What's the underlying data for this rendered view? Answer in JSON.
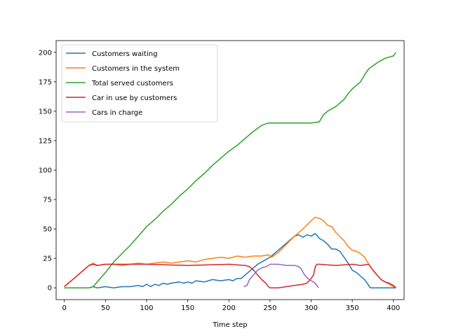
{
  "chart_data": {
    "type": "line",
    "title": "",
    "xlabel": "Time step",
    "ylabel": "",
    "xlim": [
      -10,
      413
    ],
    "ylim": [
      -10,
      210
    ],
    "xticks": [
      0,
      50,
      100,
      150,
      200,
      250,
      300,
      350,
      400
    ],
    "yticks": [
      0,
      25,
      50,
      75,
      100,
      125,
      150,
      175,
      200
    ],
    "grid": false,
    "legend": "top-left",
    "series": [
      {
        "name": "Customers waiting",
        "color": "#1f77b4",
        "points": [
          [
            0,
            0
          ],
          [
            10,
            0
          ],
          [
            20,
            0
          ],
          [
            30,
            0
          ],
          [
            35,
            1
          ],
          [
            40,
            0
          ],
          [
            50,
            1
          ],
          [
            60,
            0
          ],
          [
            70,
            1
          ],
          [
            80,
            1
          ],
          [
            90,
            2
          ],
          [
            95,
            1
          ],
          [
            100,
            3
          ],
          [
            105,
            1
          ],
          [
            110,
            3
          ],
          [
            115,
            2
          ],
          [
            120,
            4
          ],
          [
            125,
            3
          ],
          [
            130,
            4
          ],
          [
            140,
            5
          ],
          [
            145,
            4
          ],
          [
            150,
            5
          ],
          [
            155,
            4
          ],
          [
            160,
            6
          ],
          [
            170,
            5
          ],
          [
            180,
            7
          ],
          [
            190,
            6
          ],
          [
            200,
            7
          ],
          [
            205,
            6
          ],
          [
            210,
            8
          ],
          [
            215,
            8
          ],
          [
            220,
            11
          ],
          [
            225,
            14
          ],
          [
            230,
            17
          ],
          [
            235,
            20
          ],
          [
            240,
            22
          ],
          [
            245,
            24
          ],
          [
            250,
            26
          ],
          [
            260,
            32
          ],
          [
            270,
            38
          ],
          [
            280,
            44
          ],
          [
            285,
            45
          ],
          [
            290,
            43
          ],
          [
            295,
            45
          ],
          [
            300,
            44
          ],
          [
            305,
            46
          ],
          [
            310,
            42
          ],
          [
            315,
            40
          ],
          [
            320,
            37
          ],
          [
            325,
            33
          ],
          [
            330,
            33
          ],
          [
            335,
            31
          ],
          [
            340,
            26
          ],
          [
            345,
            21
          ],
          [
            350,
            15
          ],
          [
            355,
            13
          ],
          [
            360,
            10
          ],
          [
            365,
            7
          ],
          [
            370,
            2
          ],
          [
            372,
            0
          ],
          [
            380,
            0
          ],
          [
            390,
            0
          ],
          [
            400,
            0
          ],
          [
            403,
            0
          ]
        ]
      },
      {
        "name": "Customers in the system",
        "color": "#ff7f0e",
        "points": [
          [
            0,
            1
          ],
          [
            10,
            7
          ],
          [
            20,
            13
          ],
          [
            30,
            19
          ],
          [
            35,
            21
          ],
          [
            40,
            19
          ],
          [
            50,
            20
          ],
          [
            60,
            20
          ],
          [
            70,
            19
          ],
          [
            80,
            20
          ],
          [
            90,
            21
          ],
          [
            100,
            20
          ],
          [
            110,
            21
          ],
          [
            120,
            22
          ],
          [
            130,
            21
          ],
          [
            140,
            22
          ],
          [
            150,
            23
          ],
          [
            160,
            22
          ],
          [
            170,
            24
          ],
          [
            180,
            25
          ],
          [
            190,
            26
          ],
          [
            200,
            25
          ],
          [
            210,
            27
          ],
          [
            220,
            26
          ],
          [
            230,
            27
          ],
          [
            240,
            27
          ],
          [
            248,
            28
          ],
          [
            252,
            26
          ],
          [
            260,
            30
          ],
          [
            270,
            37
          ],
          [
            280,
            44
          ],
          [
            290,
            50
          ],
          [
            300,
            57
          ],
          [
            305,
            60
          ],
          [
            310,
            59
          ],
          [
            315,
            57
          ],
          [
            320,
            53
          ],
          [
            325,
            52
          ],
          [
            330,
            47
          ],
          [
            340,
            40
          ],
          [
            345,
            35
          ],
          [
            350,
            32
          ],
          [
            355,
            31
          ],
          [
            360,
            29
          ],
          [
            365,
            26
          ],
          [
            370,
            20
          ],
          [
            375,
            15
          ],
          [
            380,
            11
          ],
          [
            385,
            7
          ],
          [
            390,
            5
          ],
          [
            395,
            3
          ],
          [
            400,
            1
          ],
          [
            403,
            0
          ]
        ]
      },
      {
        "name": "Total served customers",
        "color": "#2ca02c",
        "points": [
          [
            0,
            0
          ],
          [
            30,
            0
          ],
          [
            35,
            1
          ],
          [
            40,
            5
          ],
          [
            50,
            13
          ],
          [
            60,
            22
          ],
          [
            70,
            29
          ],
          [
            80,
            36
          ],
          [
            90,
            44
          ],
          [
            100,
            52
          ],
          [
            110,
            58
          ],
          [
            120,
            65
          ],
          [
            130,
            71
          ],
          [
            140,
            78
          ],
          [
            150,
            84
          ],
          [
            160,
            91
          ],
          [
            170,
            97
          ],
          [
            180,
            104
          ],
          [
            190,
            110
          ],
          [
            200,
            116
          ],
          [
            210,
            121
          ],
          [
            220,
            127
          ],
          [
            230,
            133
          ],
          [
            240,
            138
          ],
          [
            248,
            140
          ],
          [
            260,
            140
          ],
          [
            280,
            140
          ],
          [
            300,
            140
          ],
          [
            310,
            141
          ],
          [
            315,
            147
          ],
          [
            320,
            150
          ],
          [
            330,
            154
          ],
          [
            340,
            160
          ],
          [
            345,
            165
          ],
          [
            350,
            169
          ],
          [
            360,
            175
          ],
          [
            365,
            181
          ],
          [
            370,
            186
          ],
          [
            380,
            191
          ],
          [
            390,
            195
          ],
          [
            400,
            197
          ],
          [
            403,
            200
          ]
        ]
      },
      {
        "name": "Car in use by customers",
        "color": "#d62728",
        "points": [
          [
            0,
            1
          ],
          [
            10,
            7
          ],
          [
            20,
            13
          ],
          [
            30,
            19
          ],
          [
            35,
            20
          ],
          [
            40,
            19
          ],
          [
            50,
            20
          ],
          [
            100,
            20
          ],
          [
            150,
            19
          ],
          [
            200,
            20
          ],
          [
            220,
            19
          ],
          [
            225,
            18
          ],
          [
            230,
            15
          ],
          [
            235,
            11
          ],
          [
            240,
            7
          ],
          [
            245,
            4
          ],
          [
            248,
            1
          ],
          [
            250,
            0
          ],
          [
            260,
            0
          ],
          [
            270,
            1
          ],
          [
            280,
            2
          ],
          [
            290,
            3
          ],
          [
            295,
            4
          ],
          [
            300,
            8
          ],
          [
            303,
            11
          ],
          [
            305,
            18
          ],
          [
            307,
            20
          ],
          [
            310,
            20
          ],
          [
            330,
            19
          ],
          [
            350,
            20
          ],
          [
            360,
            19
          ],
          [
            370,
            20
          ],
          [
            373,
            17
          ],
          [
            380,
            11
          ],
          [
            385,
            7
          ],
          [
            390,
            5
          ],
          [
            395,
            4
          ],
          [
            400,
            2
          ],
          [
            403,
            0
          ]
        ]
      },
      {
        "name": "Cars in charge",
        "color": "#9467bd",
        "points": [
          [
            218,
            1
          ],
          [
            222,
            2
          ],
          [
            225,
            7
          ],
          [
            230,
            11
          ],
          [
            235,
            15
          ],
          [
            240,
            17
          ],
          [
            245,
            18
          ],
          [
            248,
            19
          ],
          [
            250,
            20
          ],
          [
            260,
            20
          ],
          [
            270,
            19
          ],
          [
            280,
            19
          ],
          [
            285,
            18
          ],
          [
            288,
            16
          ],
          [
            292,
            11
          ],
          [
            296,
            8
          ],
          [
            300,
            6
          ],
          [
            303,
            5
          ],
          [
            306,
            3
          ],
          [
            309,
            0
          ]
        ]
      }
    ]
  }
}
